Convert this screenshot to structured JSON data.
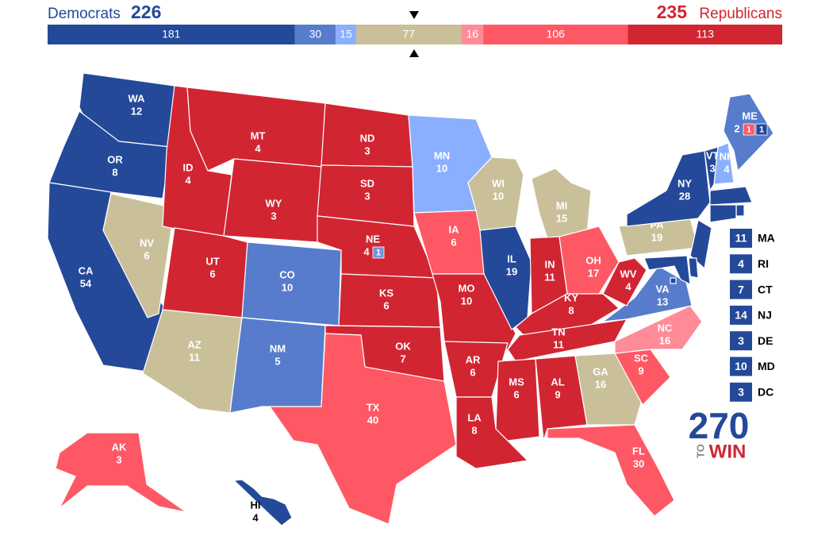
{
  "header": {
    "dem_label": "Democrats",
    "dem_total": 226,
    "rep_total": 235,
    "rep_label": "Republicans"
  },
  "bar": {
    "segments": [
      {
        "value": 181,
        "color": "#244999"
      },
      {
        "value": 30,
        "color": "#577ccc"
      },
      {
        "value": 15,
        "color": "#8aafff"
      },
      {
        "value": 77,
        "color": "#c9c09a"
      },
      {
        "value": 16,
        "color": "#ff8b98"
      },
      {
        "value": 106,
        "color": "#ff5865"
      },
      {
        "value": 113,
        "color": "#d22532"
      }
    ]
  },
  "states": [
    {
      "abbr": "WA",
      "votes": 12,
      "color": "#244999"
    },
    {
      "abbr": "OR",
      "votes": 8,
      "color": "#244999"
    },
    {
      "abbr": "CA",
      "votes": 54,
      "color": "#244999"
    },
    {
      "abbr": "NV",
      "votes": 6,
      "color": "#c9c09a"
    },
    {
      "abbr": "ID",
      "votes": 4,
      "color": "#d22532"
    },
    {
      "abbr": "MT",
      "votes": 4,
      "color": "#d22532"
    },
    {
      "abbr": "WY",
      "votes": 3,
      "color": "#d22532"
    },
    {
      "abbr": "UT",
      "votes": 6,
      "color": "#d22532"
    },
    {
      "abbr": "AZ",
      "votes": 11,
      "color": "#c9c09a"
    },
    {
      "abbr": "CO",
      "votes": 10,
      "color": "#577ccc"
    },
    {
      "abbr": "NM",
      "votes": 5,
      "color": "#577ccc"
    },
    {
      "abbr": "ND",
      "votes": 3,
      "color": "#d22532"
    },
    {
      "abbr": "SD",
      "votes": 3,
      "color": "#d22532"
    },
    {
      "abbr": "NE",
      "votes": 4,
      "color": "#d22532",
      "splits": [
        {
          "votes": 1,
          "color": "#6f94e0"
        }
      ]
    },
    {
      "abbr": "KS",
      "votes": 6,
      "color": "#d22532"
    },
    {
      "abbr": "OK",
      "votes": 7,
      "color": "#d22532"
    },
    {
      "abbr": "TX",
      "votes": 40,
      "color": "#ff5865"
    },
    {
      "abbr": "MN",
      "votes": 10,
      "color": "#8aafff"
    },
    {
      "abbr": "IA",
      "votes": 6,
      "color": "#ff5865"
    },
    {
      "abbr": "MO",
      "votes": 10,
      "color": "#d22532"
    },
    {
      "abbr": "AR",
      "votes": 6,
      "color": "#d22532"
    },
    {
      "abbr": "LA",
      "votes": 8,
      "color": "#d22532"
    },
    {
      "abbr": "WI",
      "votes": 10,
      "color": "#c9c09a"
    },
    {
      "abbr": "IL",
      "votes": 19,
      "color": "#244999"
    },
    {
      "abbr": "MI",
      "votes": 15,
      "color": "#c9c09a"
    },
    {
      "abbr": "IN",
      "votes": 11,
      "color": "#d22532"
    },
    {
      "abbr": "OH",
      "votes": 17,
      "color": "#ff5865"
    },
    {
      "abbr": "KY",
      "votes": 8,
      "color": "#d22532"
    },
    {
      "abbr": "TN",
      "votes": 11,
      "color": "#d22532"
    },
    {
      "abbr": "MS",
      "votes": 6,
      "color": "#d22532"
    },
    {
      "abbr": "AL",
      "votes": 9,
      "color": "#d22532"
    },
    {
      "abbr": "GA",
      "votes": 16,
      "color": "#c9c09a"
    },
    {
      "abbr": "FL",
      "votes": 30,
      "color": "#ff5865"
    },
    {
      "abbr": "SC",
      "votes": 9,
      "color": "#ff5865"
    },
    {
      "abbr": "NC",
      "votes": 16,
      "color": "#ff8b98"
    },
    {
      "abbr": "VA",
      "votes": 13,
      "color": "#577ccc"
    },
    {
      "abbr": "WV",
      "votes": 4,
      "color": "#d22532"
    },
    {
      "abbr": "PA",
      "votes": 19,
      "color": "#c9c09a"
    },
    {
      "abbr": "NY",
      "votes": 28,
      "color": "#244999"
    },
    {
      "abbr": "VT",
      "votes": 3,
      "color": "#244999"
    },
    {
      "abbr": "NH",
      "votes": 4,
      "color": "#8aafff"
    },
    {
      "abbr": "ME",
      "votes": 2,
      "color": "#577ccc",
      "splits": [
        {
          "votes": 1,
          "color": "#ff5865"
        },
        {
          "votes": 1,
          "color": "#244999"
        }
      ]
    },
    {
      "abbr": "MA",
      "votes": 11,
      "color": "#244999"
    },
    {
      "abbr": "RI",
      "votes": 4,
      "color": "#244999"
    },
    {
      "abbr": "CT",
      "votes": 7,
      "color": "#244999"
    },
    {
      "abbr": "NJ",
      "votes": 14,
      "color": "#244999"
    },
    {
      "abbr": "DE",
      "votes": 3,
      "color": "#244999"
    },
    {
      "abbr": "MD",
      "votes": 10,
      "color": "#244999"
    },
    {
      "abbr": "DC",
      "votes": 3,
      "color": "#244999"
    },
    {
      "abbr": "AK",
      "votes": 3,
      "color": "#ff5865"
    },
    {
      "abbr": "HI",
      "votes": 4,
      "color": "#244999"
    }
  ],
  "logo": {
    "number": "270",
    "to": "TO",
    "win": "WIN"
  }
}
